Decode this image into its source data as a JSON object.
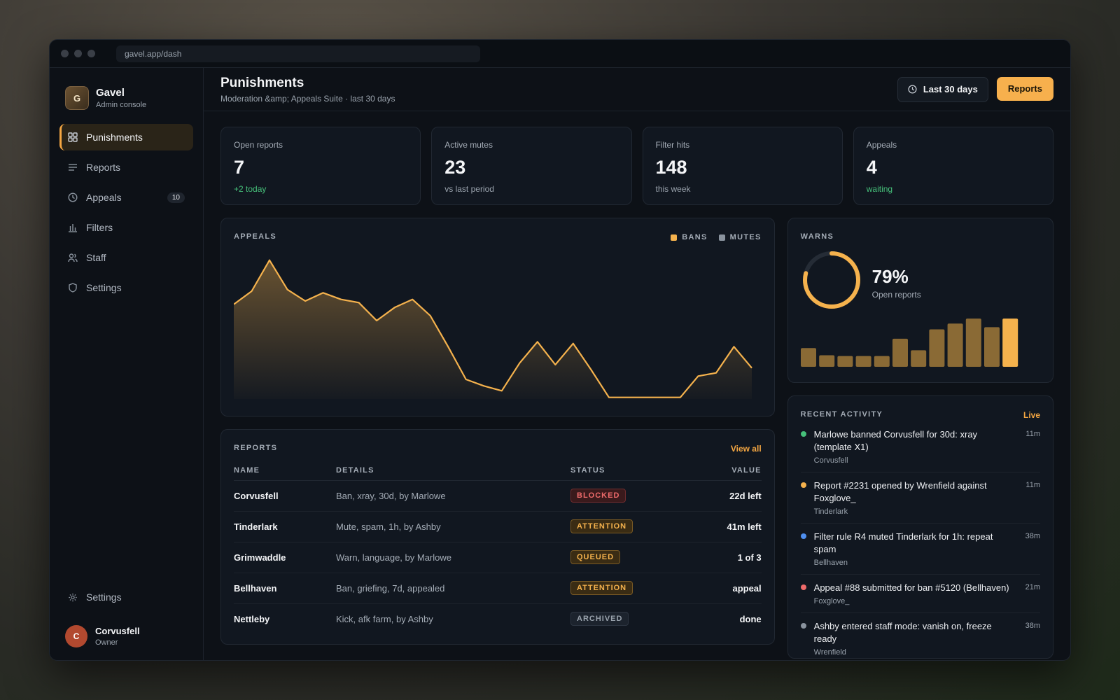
{
  "browser": {
    "url": "gavel.app/dash"
  },
  "brand": {
    "logo_letter": "G",
    "name": "Gavel",
    "subtitle": "Admin console"
  },
  "sidebar": {
    "items": [
      {
        "label": "Punishments",
        "icon": "grid-icon",
        "active": true
      },
      {
        "label": "Reports",
        "icon": "list-icon"
      },
      {
        "label": "Appeals",
        "icon": "clock-icon",
        "badge": "10"
      },
      {
        "label": "Filters",
        "icon": "bar-chart-icon"
      },
      {
        "label": "Staff",
        "icon": "users-icon"
      },
      {
        "label": "Settings",
        "icon": "shield-icon"
      }
    ],
    "bottom_settings": "Settings",
    "user": {
      "initial": "C",
      "name": "Corvusfell",
      "role": "Owner"
    }
  },
  "header": {
    "title": "Punishments",
    "subtitle": "Moderation &amp; Appeals Suite · last 30 days",
    "range_label": "Last 30 days",
    "primary_label": "Reports"
  },
  "stats": [
    {
      "label": "Open reports",
      "value": "7",
      "note": "+2 today",
      "positive": true
    },
    {
      "label": "Active mutes",
      "value": "23",
      "note": "vs last period",
      "positive": false
    },
    {
      "label": "Filter hits",
      "value": "148",
      "note": "this week",
      "positive": false
    },
    {
      "label": "Appeals",
      "value": "4",
      "note": "waiting",
      "positive": true
    }
  ],
  "appeals_chart": {
    "title": "APPEALS",
    "legend": [
      {
        "name": "BANS",
        "color": "#f5b24d"
      },
      {
        "name": "MUTES",
        "color": "#8a939e"
      }
    ]
  },
  "chart_data": {
    "type": "area",
    "series": [
      {
        "name": "BANS",
        "color": "#f5b24d",
        "values": [
          58,
          66,
          85,
          67,
          60,
          65,
          61,
          59,
          48,
          56,
          61,
          51,
          32,
          12,
          8,
          5,
          22,
          35,
          21,
          34,
          18,
          1,
          1,
          1,
          1,
          1,
          14,
          16,
          32,
          19
        ]
      }
    ],
    "ylim": [
      0,
      90
    ]
  },
  "reports": {
    "title": "REPORTS",
    "view_all": "View all",
    "columns": [
      "NAME",
      "DETAILS",
      "STATUS",
      "VALUE"
    ],
    "rows": [
      {
        "name": "Corvusfell",
        "details": "Ban, xray, 30d, by Marlowe",
        "status": "BLOCKED",
        "kind": "blocked",
        "value": "22d left"
      },
      {
        "name": "Tinderlark",
        "details": "Mute, spam, 1h, by Ashby",
        "status": "ATTENTION",
        "kind": "attention",
        "value": "41m left"
      },
      {
        "name": "Grimwaddle",
        "details": "Warn, language, by Marlowe",
        "status": "QUEUED",
        "kind": "queued",
        "value": "1 of 3"
      },
      {
        "name": "Bellhaven",
        "details": "Ban, griefing, 7d, appealed",
        "status": "ATTENTION",
        "kind": "attention",
        "value": "appeal"
      },
      {
        "name": "Nettleby",
        "details": "Kick, afk farm, by Ashby",
        "status": "ARCHIVED",
        "kind": "archived",
        "value": "done"
      }
    ]
  },
  "warns": {
    "title": "WARNS",
    "percent": "79%",
    "percent_value": 0.79,
    "label": "Open reports",
    "bars": [
      26,
      16,
      15,
      15,
      15,
      39,
      23,
      52,
      60,
      67,
      55,
      67
    ]
  },
  "activity": {
    "title": "RECENT ACTIVITY",
    "live": "Live",
    "items": [
      {
        "text": "Marlowe banned Corvusfell for 30d: xray (template X1)",
        "sub": "Corvusfell",
        "time": "11m",
        "color": "#46c07a"
      },
      {
        "text": "Report #2231 opened by Wrenfield against Foxglove_",
        "sub": "Tinderlark",
        "time": "11m",
        "color": "#f5b24d"
      },
      {
        "text": "Filter rule R4 muted Tinderlark for 1h: repeat spam",
        "sub": "Bellhaven",
        "time": "38m",
        "color": "#4f8ff0"
      },
      {
        "text": "Appeal #88 submitted for ban #5120 (Bellhaven)",
        "sub": "Foxglove_",
        "time": "21m",
        "color": "#ef6b6b"
      },
      {
        "text": "Ashby entered staff mode: vanish on, freeze ready",
        "sub": "Wrenfield",
        "time": "38m",
        "color": "#8a939e"
      }
    ]
  }
}
